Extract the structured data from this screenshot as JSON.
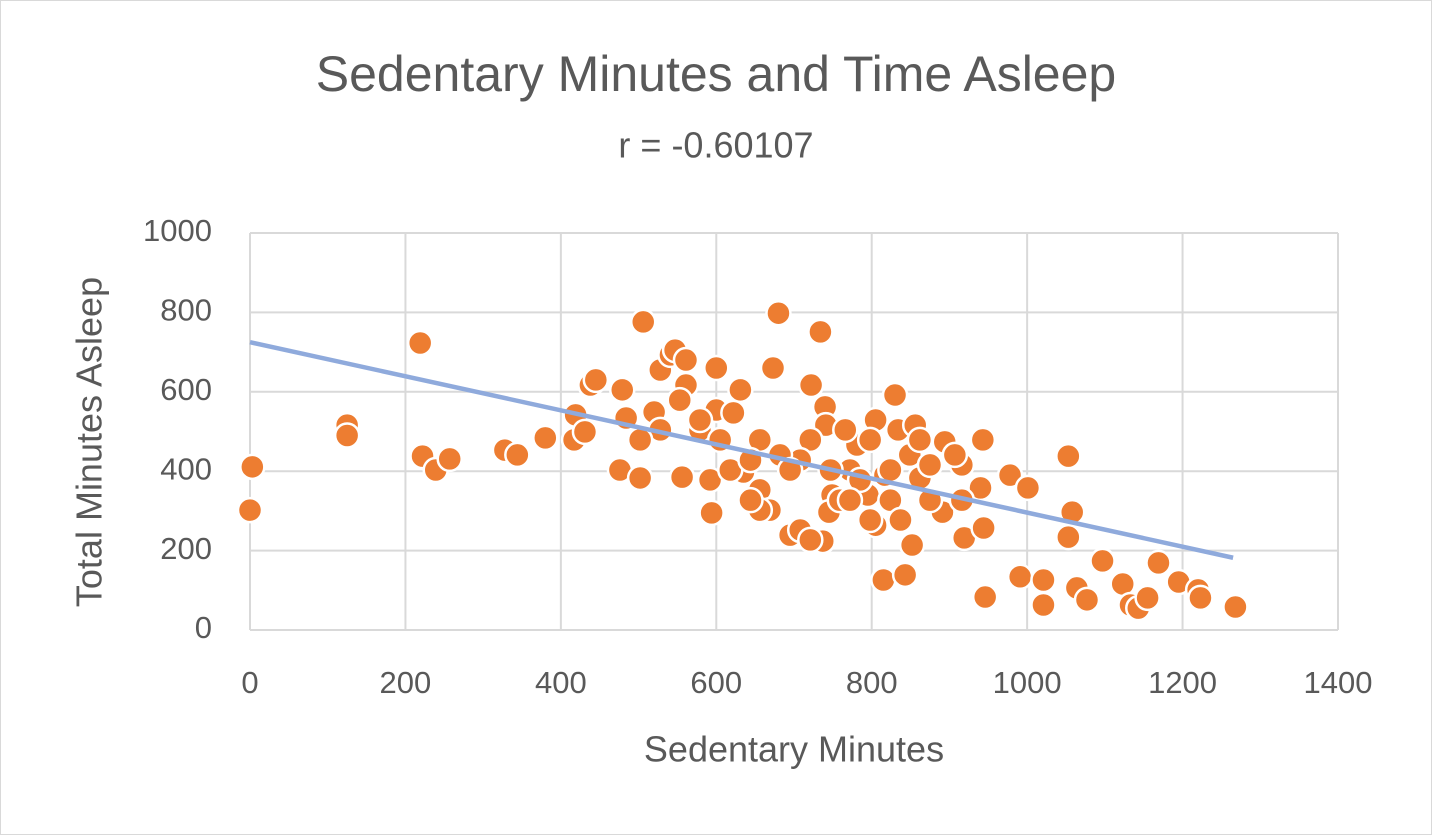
{
  "chart_data": {
    "type": "scatter",
    "title": "Sedentary Minutes and Time Asleep",
    "subtitle": "r = -0.60107",
    "x_label": "Sedentary Minutes",
    "y_label": "Total Minutes Asleep",
    "color": "#ed7d31",
    "x": [
      3,
      0,
      125,
      125,
      219,
      222,
      239,
      257,
      328,
      344,
      380,
      417,
      419,
      431,
      438,
      445,
      479,
      484,
      476,
      502,
      506,
      520,
      528,
      541,
      547,
      561,
      561,
      556,
      594,
      600,
      600,
      622,
      631,
      635,
      673,
      680,
      734,
      722,
      740,
      741,
      749,
      745,
      737,
      781,
      805,
      795,
      805,
      815,
      817,
      834,
      843,
      849,
      852,
      856,
      862,
      891,
      894,
      916,
      919,
      940,
      943,
      944,
      946,
      978,
      1001,
      991,
      1021,
      1021,
      1053,
      1058,
      1053,
      1064,
      1077,
      1097,
      1123,
      1133,
      1143,
      1155,
      1169,
      1195,
      1220,
      1223,
      1268,
      656,
      669,
      695,
      708,
      721,
      708,
      682,
      656,
      695,
      759,
      772,
      785,
      766,
      798,
      824,
      837,
      830,
      798,
      772,
      875,
      875,
      579,
      592,
      618,
      605,
      644,
      656,
      553,
      579,
      528,
      502,
      644,
      721,
      824,
      916,
      907,
      862,
      747
    ],
    "values": [
      411,
      302,
      516,
      490,
      723,
      438,
      403,
      431,
      453,
      441,
      484,
      479,
      542,
      499,
      617,
      630,
      605,
      534,
      403,
      383,
      776,
      549,
      655,
      693,
      705,
      680,
      617,
      385,
      295,
      660,
      554,
      547,
      605,
      398,
      660,
      798,
      751,
      617,
      562,
      516,
      340,
      297,
      224,
      466,
      529,
      340,
      264,
      126,
      390,
      504,
      139,
      441,
      214,
      516,
      383,
      297,
      474,
      416,
      232,
      358,
      479,
      257,
      83,
      390,
      358,
      134,
      126,
      63,
      438,
      297,
      234,
      106,
      76,
      174,
      116,
      63,
      55,
      81,
      169,
      121,
      101,
      81,
      58,
      353,
      302,
      239,
      252,
      479,
      428,
      441,
      479,
      403,
      327,
      403,
      378,
      504,
      479,
      327,
      277,
      592,
      277,
      327,
      327,
      416,
      504,
      378,
      403,
      479,
      428,
      302,
      579,
      529,
      504,
      479,
      327,
      227,
      403,
      327,
      441,
      479,
      403
    ],
    "trendline": {
      "x": [
        0,
        1265
      ],
      "values": [
        725,
        182
      ],
      "color": "#8faadc"
    },
    "xlim": [
      0,
      1400
    ],
    "xticks": [
      0,
      200,
      400,
      600,
      800,
      1000,
      1200,
      1400
    ],
    "ylim": [
      0,
      1000
    ],
    "yticks": [
      0,
      200,
      400,
      600,
      800,
      1000
    ],
    "grid": true
  }
}
